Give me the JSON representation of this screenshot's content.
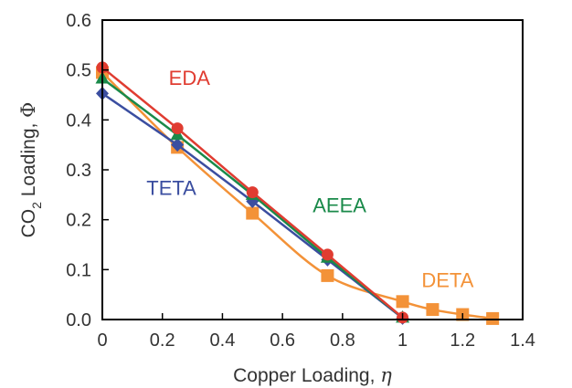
{
  "chart_data": {
    "type": "line",
    "xlabel": {
      "prefix": "Copper Loading, ",
      "symbol": "η"
    },
    "ylabel": {
      "base": "CO",
      "subscript": "2",
      "rest": " Loading, ",
      "symbol": "Φ"
    },
    "xlim": [
      0,
      1.4
    ],
    "ylim": [
      0,
      0.6
    ],
    "x_ticks": [
      "0",
      "0.2",
      "0.4",
      "0.6",
      "0.8",
      "1",
      "1.2",
      "1.4"
    ],
    "y_ticks": [
      "0.0",
      "0.1",
      "0.2",
      "0.3",
      "0.4",
      "0.5",
      "0.6"
    ],
    "grid": false,
    "series": [
      {
        "name": "DETA",
        "color": "#f39238",
        "marker": "square",
        "smooth": true,
        "x": [
          0,
          0.25,
          0.5,
          0.75,
          1.0,
          1.1,
          1.2,
          1.3
        ],
        "y": [
          0.495,
          0.345,
          0.213,
          0.088,
          0.036,
          0.02,
          0.01,
          0.002
        ]
      },
      {
        "name": "TETA",
        "color": "#3b4ea0",
        "marker": "diamond",
        "smooth": false,
        "x": [
          0,
          0.25,
          0.5,
          0.75,
          1.0
        ],
        "y": [
          0.453,
          0.35,
          0.237,
          0.12,
          0.003
        ]
      },
      {
        "name": "AEEA",
        "color": "#1a8a4a",
        "marker": "triangle",
        "smooth": false,
        "x": [
          0,
          0.25,
          0.5,
          0.75,
          1.0
        ],
        "y": [
          0.483,
          0.37,
          0.25,
          0.124,
          0.004
        ]
      },
      {
        "name": "EDA",
        "color": "#e03c31",
        "marker": "circle",
        "smooth": false,
        "x": [
          0,
          0.25,
          0.5,
          0.75,
          1.0
        ],
        "y": [
          0.505,
          0.383,
          0.255,
          0.13,
          0.004
        ]
      }
    ]
  }
}
